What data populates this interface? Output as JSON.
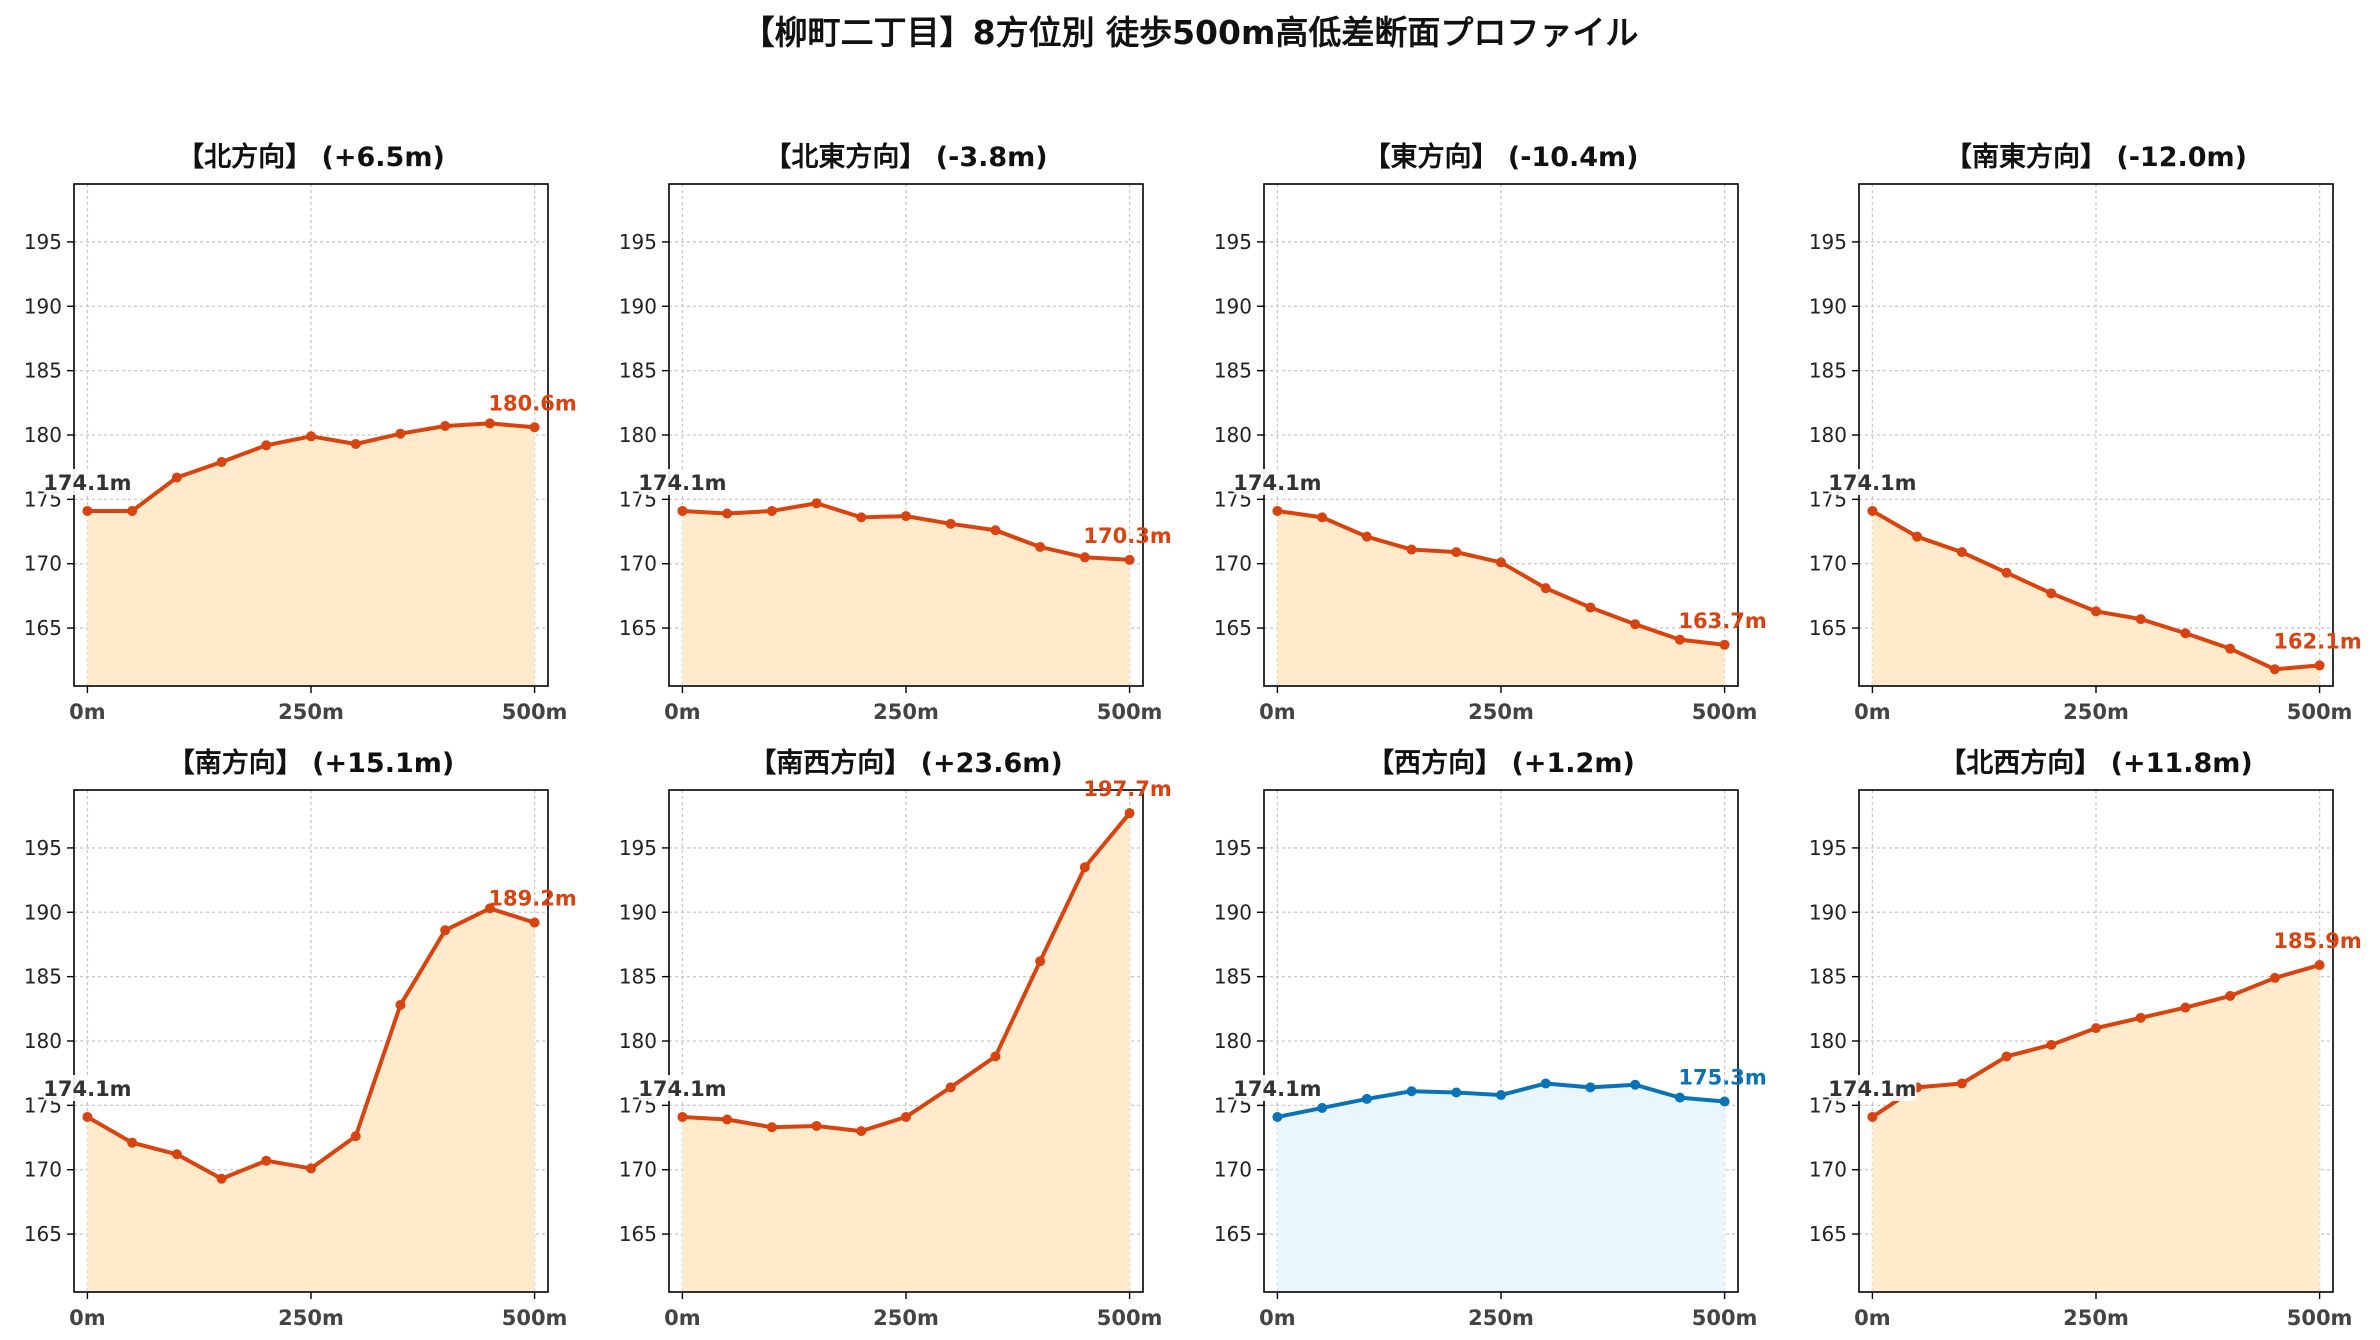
{
  "figure": {
    "title": "【柳町二丁目】8方位別 徒歩500m高低差断面プロファイル"
  },
  "colors": {
    "up_line": "#d9430f",
    "up_fill": "#ffebcc",
    "flat_line": "#0a73b8",
    "flat_fill": "#e9f6fc",
    "start_label": "#333333"
  },
  "chart_data": [
    {
      "type": "area",
      "title": "【北方向】 (+6.5m)",
      "color": "up",
      "x": [
        0,
        50,
        100,
        150,
        200,
        250,
        300,
        350,
        400,
        450,
        500
      ],
      "y": [
        174.1,
        174.1,
        176.7,
        177.9,
        179.2,
        179.9,
        179.3,
        180.1,
        180.7,
        180.9,
        180.6
      ],
      "xlim": [
        -15,
        515
      ],
      "ylim": [
        160.5,
        199.5
      ],
      "xticks": [
        0,
        250,
        500
      ],
      "xtick_labels": [
        "0m",
        "250m",
        "500m"
      ],
      "yticks": [
        165,
        170,
        175,
        180,
        185,
        190,
        195
      ],
      "ytick_labels": [
        "165",
        "170",
        "175",
        "180",
        "185",
        "190",
        "195"
      ],
      "start_label": "174.1m",
      "end_label": "180.6m",
      "grid": true
    },
    {
      "type": "area",
      "title": "【北東方向】 (-3.8m)",
      "color": "up",
      "x": [
        0,
        50,
        100,
        150,
        200,
        250,
        300,
        350,
        400,
        450,
        500
      ],
      "y": [
        174.1,
        173.9,
        174.1,
        174.7,
        173.6,
        173.7,
        173.1,
        172.6,
        171.3,
        170.5,
        170.3
      ],
      "xlim": [
        -15,
        515
      ],
      "ylim": [
        160.5,
        199.5
      ],
      "xticks": [
        0,
        250,
        500
      ],
      "xtick_labels": [
        "0m",
        "250m",
        "500m"
      ],
      "yticks": [
        165,
        170,
        175,
        180,
        185,
        190,
        195
      ],
      "ytick_labels": [
        "165",
        "170",
        "175",
        "180",
        "185",
        "190",
        "195"
      ],
      "start_label": "174.1m",
      "end_label": "170.3m",
      "grid": true
    },
    {
      "type": "area",
      "title": "【東方向】 (-10.4m)",
      "color": "up",
      "x": [
        0,
        50,
        100,
        150,
        200,
        250,
        300,
        350,
        400,
        450,
        500
      ],
      "y": [
        174.1,
        173.6,
        172.1,
        171.1,
        170.9,
        170.1,
        168.1,
        166.6,
        165.3,
        164.1,
        163.7
      ],
      "xlim": [
        -15,
        515
      ],
      "ylim": [
        160.5,
        199.5
      ],
      "xticks": [
        0,
        250,
        500
      ],
      "xtick_labels": [
        "0m",
        "250m",
        "500m"
      ],
      "yticks": [
        165,
        170,
        175,
        180,
        185,
        190,
        195
      ],
      "ytick_labels": [
        "165",
        "170",
        "175",
        "180",
        "185",
        "190",
        "195"
      ],
      "start_label": "174.1m",
      "end_label": "163.7m",
      "grid": true
    },
    {
      "type": "area",
      "title": "【南東方向】 (-12.0m)",
      "color": "up",
      "x": [
        0,
        50,
        100,
        150,
        200,
        250,
        300,
        350,
        400,
        450,
        500
      ],
      "y": [
        174.1,
        172.1,
        170.9,
        169.3,
        167.7,
        166.3,
        165.7,
        164.6,
        163.4,
        161.8,
        162.1
      ],
      "xlim": [
        -15,
        515
      ],
      "ylim": [
        160.5,
        199.5
      ],
      "xticks": [
        0,
        250,
        500
      ],
      "xtick_labels": [
        "0m",
        "250m",
        "500m"
      ],
      "yticks": [
        165,
        170,
        175,
        180,
        185,
        190,
        195
      ],
      "ytick_labels": [
        "165",
        "170",
        "175",
        "180",
        "185",
        "190",
        "195"
      ],
      "start_label": "174.1m",
      "end_label": "162.1m",
      "grid": true
    },
    {
      "type": "area",
      "title": "【南方向】 (+15.1m)",
      "color": "up",
      "x": [
        0,
        50,
        100,
        150,
        200,
        250,
        300,
        350,
        400,
        450,
        500
      ],
      "y": [
        174.1,
        172.1,
        171.2,
        169.3,
        170.7,
        170.1,
        172.6,
        182.8,
        188.6,
        190.3,
        189.2
      ],
      "xlim": [
        -15,
        515
      ],
      "ylim": [
        160.5,
        199.5
      ],
      "xticks": [
        0,
        250,
        500
      ],
      "xtick_labels": [
        "0m",
        "250m",
        "500m"
      ],
      "yticks": [
        165,
        170,
        175,
        180,
        185,
        190,
        195
      ],
      "ytick_labels": [
        "165",
        "170",
        "175",
        "180",
        "185",
        "190",
        "195"
      ],
      "start_label": "174.1m",
      "end_label": "189.2m",
      "grid": true
    },
    {
      "type": "area",
      "title": "【南西方向】 (+23.6m)",
      "color": "up",
      "x": [
        0,
        50,
        100,
        150,
        200,
        250,
        300,
        350,
        400,
        450,
        500
      ],
      "y": [
        174.1,
        173.9,
        173.3,
        173.4,
        173.0,
        174.1,
        176.4,
        178.8,
        186.2,
        193.5,
        197.7
      ],
      "xlim": [
        -15,
        515
      ],
      "ylim": [
        160.5,
        199.5
      ],
      "xticks": [
        0,
        250,
        500
      ],
      "xtick_labels": [
        "0m",
        "250m",
        "500m"
      ],
      "yticks": [
        165,
        170,
        175,
        180,
        185,
        190,
        195
      ],
      "ytick_labels": [
        "165",
        "170",
        "175",
        "180",
        "185",
        "190",
        "195"
      ],
      "start_label": "174.1m",
      "end_label": "197.7m",
      "grid": true
    },
    {
      "type": "area",
      "title": "【西方向】 (+1.2m)",
      "color": "flat",
      "x": [
        0,
        50,
        100,
        150,
        200,
        250,
        300,
        350,
        400,
        450,
        500
      ],
      "y": [
        174.1,
        174.8,
        175.5,
        176.1,
        176.0,
        175.8,
        176.7,
        176.4,
        176.6,
        175.6,
        175.3
      ],
      "xlim": [
        -15,
        515
      ],
      "ylim": [
        160.5,
        199.5
      ],
      "xticks": [
        0,
        250,
        500
      ],
      "xtick_labels": [
        "0m",
        "250m",
        "500m"
      ],
      "yticks": [
        165,
        170,
        175,
        180,
        185,
        190,
        195
      ],
      "ytick_labels": [
        "165",
        "170",
        "175",
        "180",
        "185",
        "190",
        "195"
      ],
      "start_label": "174.1m",
      "end_label": "175.3m",
      "grid": true
    },
    {
      "type": "area",
      "title": "【北西方向】 (+11.8m)",
      "color": "up",
      "x": [
        0,
        50,
        100,
        150,
        200,
        250,
        300,
        350,
        400,
        450,
        500
      ],
      "y": [
        174.1,
        176.4,
        176.7,
        178.8,
        179.7,
        181.0,
        181.8,
        182.6,
        183.5,
        184.9,
        185.9
      ],
      "xlim": [
        -15,
        515
      ],
      "ylim": [
        160.5,
        199.5
      ],
      "xticks": [
        0,
        250,
        500
      ],
      "xtick_labels": [
        "0m",
        "250m",
        "500m"
      ],
      "yticks": [
        165,
        170,
        175,
        180,
        185,
        190,
        195
      ],
      "ytick_labels": [
        "165",
        "170",
        "175",
        "180",
        "185",
        "190",
        "195"
      ],
      "start_label": "174.1m",
      "end_label": "185.9m",
      "grid": true
    }
  ]
}
